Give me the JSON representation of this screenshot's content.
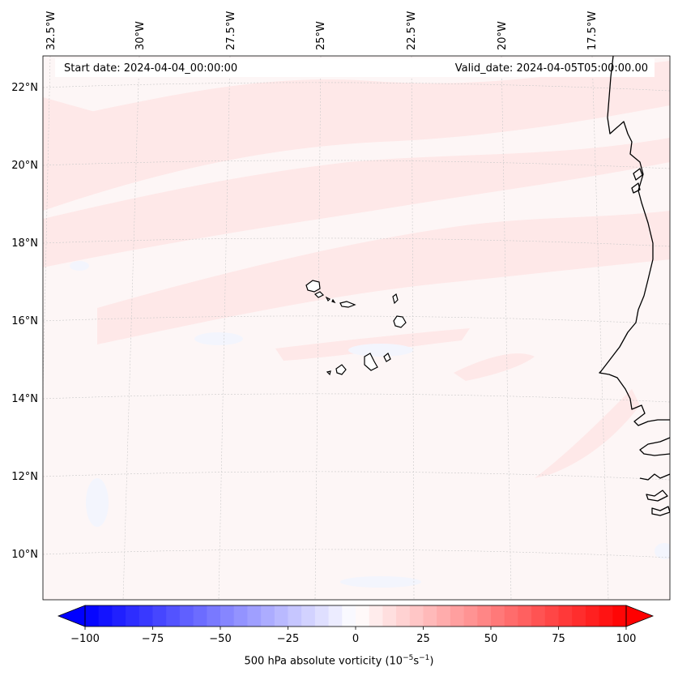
{
  "map": {
    "start_date": "Start date: 2024-04-04_00:00:00",
    "valid_date": "Valid_date: 2024-04-05T05:00:00.00",
    "lon_labels": [
      "32.5°W",
      "30°W",
      "27.5°W",
      "25°W",
      "22.5°W",
      "20°W",
      "17.5°W"
    ],
    "lat_labels": [
      "22°N",
      "20°N",
      "18°N",
      "16°N",
      "14°N",
      "12°N",
      "10°N"
    ]
  },
  "colorbar": {
    "title_main": "500 hPa absolute vorticity (10",
    "title_exp1": "−5",
    "title_mid": "s",
    "title_exp2": "−1",
    "title_end": ")",
    "ticks": [
      "−100",
      "−75",
      "−50",
      "−25",
      "0",
      "25",
      "50",
      "75",
      "100"
    ],
    "range": [
      -100,
      100
    ],
    "step": 5,
    "color_min": "#0000ff",
    "color_mid": "#ffffff",
    "color_max": "#ff0000"
  },
  "colors": {
    "background": "#fdf6f6",
    "band": "#fee8e8",
    "blue_patch": "#f3f5fd",
    "coast": "#000000"
  }
}
